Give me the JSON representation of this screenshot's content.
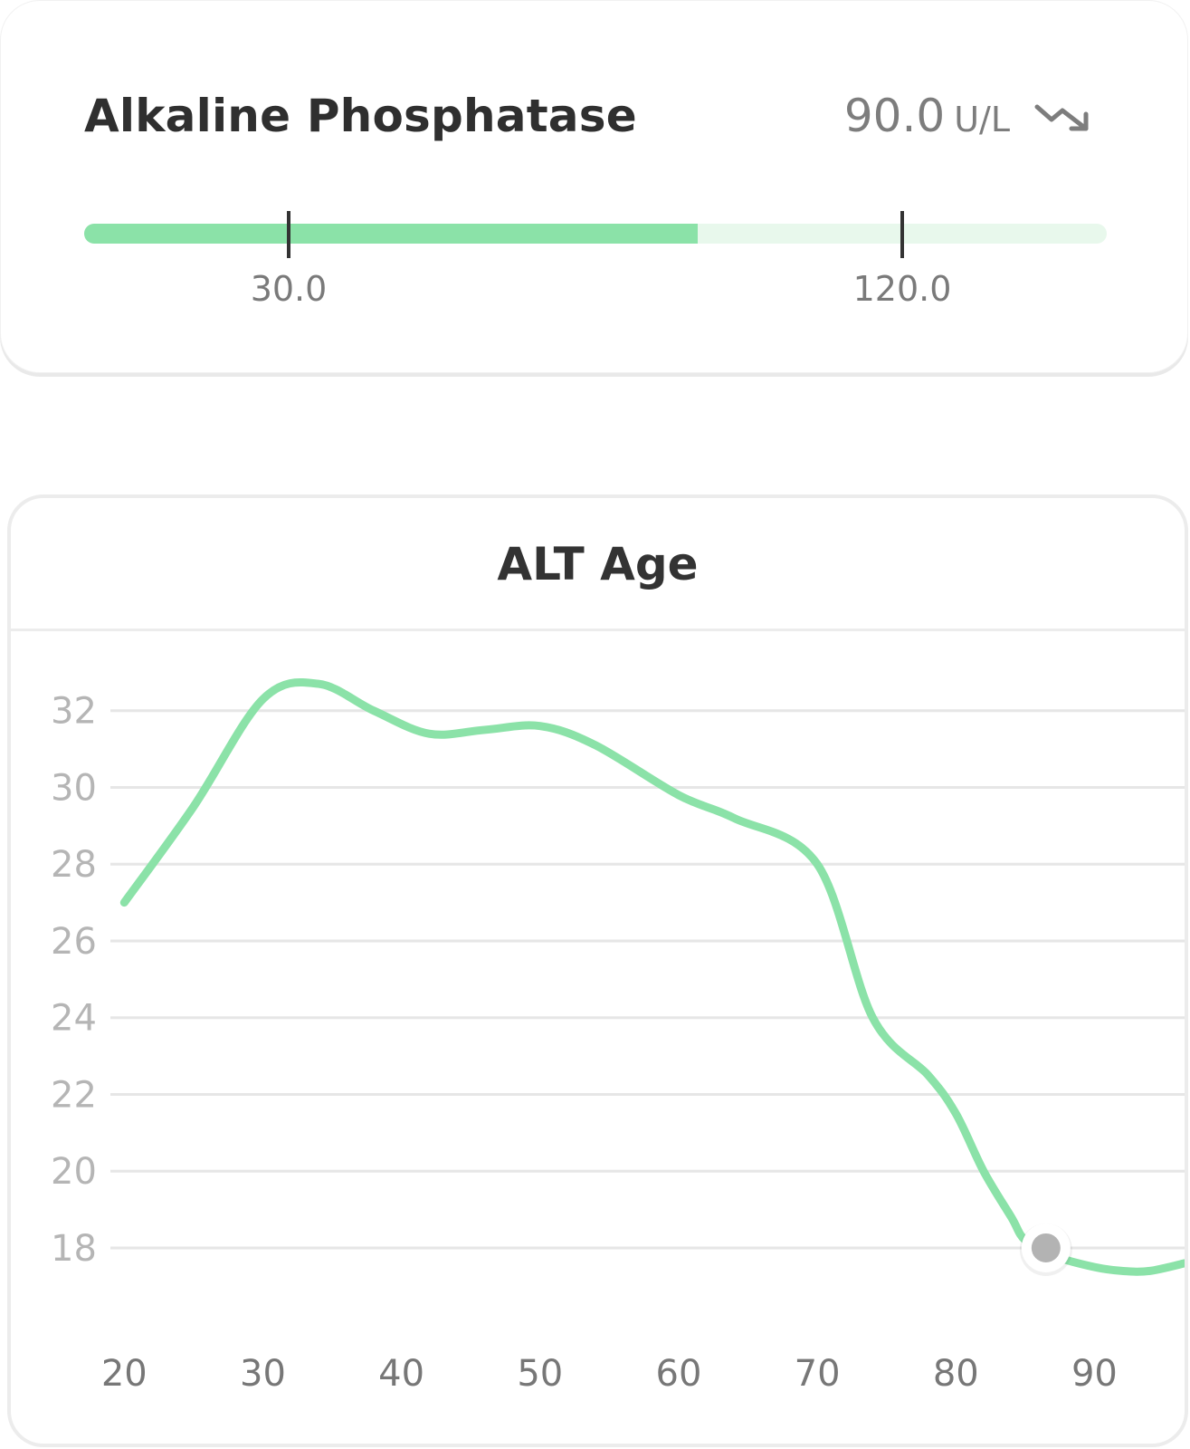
{
  "marker": {
    "name": "Alkaline Phosphatase",
    "value": "90.0",
    "unit": "U/L",
    "trend_icon": "trending-down-icon",
    "range": {
      "low": 30.0,
      "high": 120.0,
      "low_label": "30.0",
      "high_label": "120.0",
      "scale_min": 0,
      "scale_max": 150,
      "current": 90.0
    },
    "colors": {
      "fill": "#8be2a8",
      "track": "#e8f8ec",
      "marker": "#333333"
    }
  },
  "chart_data": {
    "type": "line",
    "title": "ALT Age",
    "xlabel": "",
    "ylabel": "",
    "xlim": [
      19,
      96.5
    ],
    "ylim": [
      16.3,
      34
    ],
    "x_ticks": [
      20,
      30,
      40,
      50,
      60,
      70,
      80,
      90
    ],
    "y_ticks": [
      18,
      20,
      22,
      24,
      26,
      28,
      30,
      32
    ],
    "grid": true,
    "legend": "none",
    "series": [
      {
        "color": "#8be2a8",
        "x": [
          20,
          25,
          30,
          34,
          38,
          42,
          46,
          50,
          54,
          60,
          64,
          70,
          74,
          78,
          80,
          82,
          84,
          85,
          87,
          90,
          92,
          94,
          96.5
        ],
        "y": [
          27.0,
          29.5,
          32.3,
          32.7,
          32.0,
          31.4,
          31.5,
          31.6,
          31.1,
          29.8,
          29.2,
          28.0,
          24.0,
          22.5,
          21.5,
          20.0,
          18.8,
          18.2,
          17.8,
          17.5,
          17.4,
          17.4,
          17.6
        ]
      }
    ],
    "highlight_point": {
      "x": 86.5,
      "y": 18.0,
      "color": "#b3b3b3"
    }
  }
}
